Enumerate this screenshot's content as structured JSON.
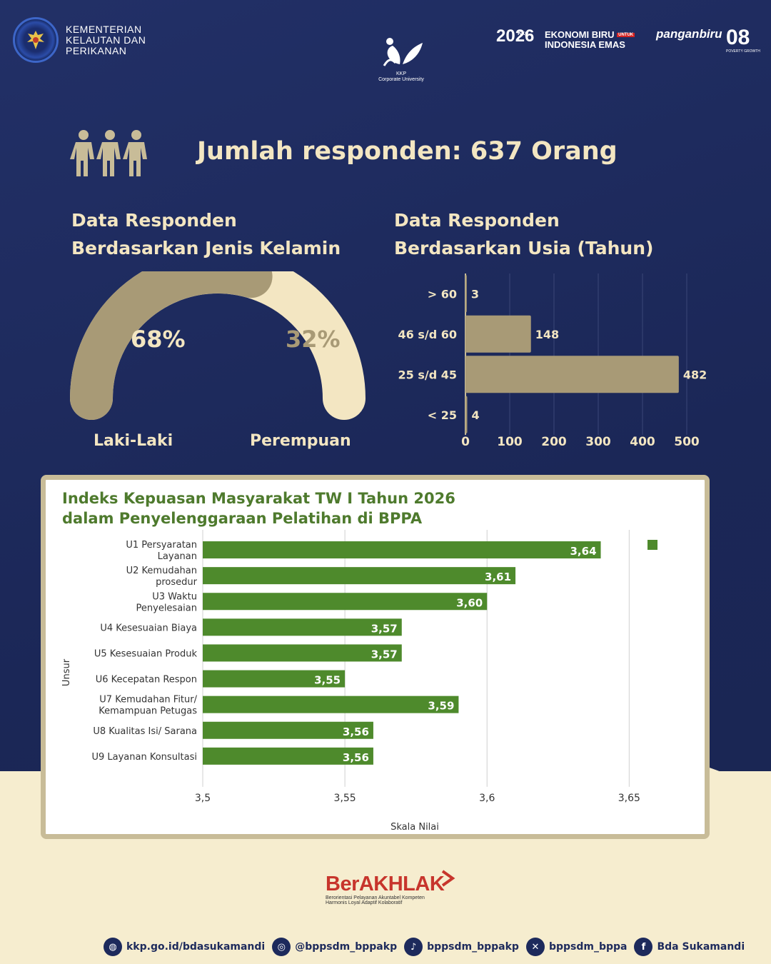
{
  "header": {
    "ministry": [
      "KEMENTERIAN",
      "KELAUTAN DAN",
      "PERIKANAN"
    ],
    "corpu_lines": [
      "KKP",
      "Corporate University"
    ],
    "logo_kkp": "Kkp",
    "logo_2026": "2026",
    "logo_eko_line1": "EKONOMI BIRU",
    "logo_eko_untuk": "UNTUK",
    "logo_eko_line2": "INDONESIA EMAS",
    "logo_pangan": "panganbiru",
    "logo_08": "08",
    "logo_08_sub": "POVERTY   GROWTH"
  },
  "respondents": {
    "title": "Jumlah responden: 637 Orang",
    "icon": "people-icon"
  },
  "gender": {
    "title_line1": "Data Responden",
    "title_line2": "Berdasarkan Jenis Kelamin",
    "male_pct": "68%",
    "female_pct": "32%",
    "male_label": "Laki-Laki",
    "female_label": "Perempuan",
    "male_value": 68,
    "female_value": 32,
    "colors": {
      "male": "#a89a76",
      "female": "#f3e6c2"
    }
  },
  "age": {
    "title_line1": "Data Responden",
    "title_line2": "Berdasarkan Usia (Tahun)"
  },
  "ikm": {
    "title_line1": "Indeks Kepuasan Masyarakat TW I Tahun 2026",
    "title_line2": "dalam Penyelenggaraan Pelatihan di BPPA"
  },
  "chart_data": [
    {
      "type": "bar",
      "orientation": "horizontal",
      "title": "Data Responden Berdasarkan Usia (Tahun)",
      "categories": [
        "> 60",
        "46 s/d 60",
        "25 s/d 45",
        "< 25"
      ],
      "values": [
        3,
        148,
        482,
        4
      ],
      "value_labels": [
        "3",
        "148",
        "482",
        "4"
      ],
      "xlim": [
        0,
        500
      ],
      "xticks": [
        "0",
        "100",
        "200",
        "300",
        "400",
        "500"
      ],
      "grid": true,
      "color": "#a89a76"
    },
    {
      "type": "bar",
      "orientation": "horizontal",
      "title": "Indeks Kepuasan Masyarakat TW I Tahun 2026 dalam Penyelenggaraan Pelatihan di BPPA",
      "categories": [
        [
          "U1 Persyaratan",
          "Layanan"
        ],
        [
          "U2 Kemudahan",
          "prosedur"
        ],
        [
          "U3 Waktu",
          "Penyelesaian"
        ],
        [
          "U4 Kesesuaian Biaya"
        ],
        [
          "U5 Kesesuaian Produk"
        ],
        [
          "U6 Kecepatan Respon"
        ],
        [
          "U7 Kemudahan Fitur/",
          "Kemampuan Petugas"
        ],
        [
          "U8 Kualitas Isi/ Sarana"
        ],
        [
          "U9 Layanan Konsultasi"
        ]
      ],
      "values": [
        3.64,
        3.61,
        3.6,
        3.57,
        3.57,
        3.55,
        3.59,
        3.56,
        3.56
      ],
      "value_labels": [
        "3,64",
        "3,61",
        "3,60",
        "3,57",
        "3,57",
        "3,55",
        "3,59",
        "3,56",
        "3,56"
      ],
      "xlim": [
        3.5,
        3.67
      ],
      "xticks": [
        3.5,
        3.55,
        3.6,
        3.65
      ],
      "xtick_labels": [
        "3,5",
        "3,55",
        "3,6",
        "3,65"
      ],
      "xlabel": "Skala Nilai",
      "ylabel": "Unsur",
      "grid": true,
      "legend": "top-right",
      "color": "#4e8a2c"
    }
  ],
  "footer": {
    "berakhlak": "BerAKHLAK",
    "berakhlak_sub1": "Berorientasi Pelayanan Akuntabel Kompeten",
    "berakhlak_sub2": "Harmonis Loyal Adaptif Kolaboratif",
    "socials": [
      {
        "icon": "globe-icon",
        "glyph": "◍",
        "text": "kkp.go.id/bdasukamandi"
      },
      {
        "icon": "instagram-icon",
        "glyph": "◎",
        "text": "@bppsdm_bppakp"
      },
      {
        "icon": "tiktok-icon",
        "glyph": "♪",
        "text": "bppsdm_bppakp"
      },
      {
        "icon": "x-icon",
        "glyph": "✕",
        "text": "bppsdm_bppa"
      },
      {
        "icon": "facebook-icon",
        "glyph": "f",
        "text": "Bda Sukamandi"
      }
    ]
  }
}
